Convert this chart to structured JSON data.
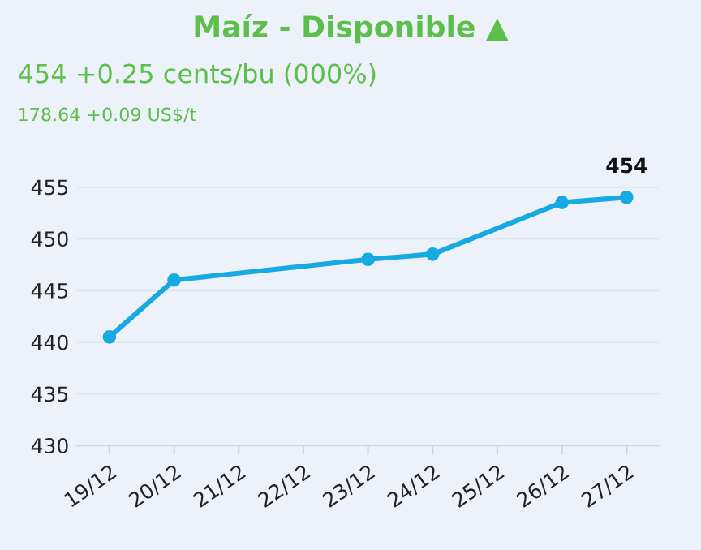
{
  "chart_data": {
    "type": "line",
    "title": "Maíz - Disponible ▲",
    "subtitle": "454 +0.25 cents/bu (000%)",
    "annotations": [
      "178.64 +0.09 US$/t",
      {
        "text": "454",
        "x": "27/12",
        "y": 454
      }
    ],
    "categories": [
      "19/12",
      "20/12",
      "21/12",
      "22/12",
      "23/12",
      "24/12",
      "25/12",
      "26/12",
      "27/12"
    ],
    "series": [
      {
        "color": "#17a9e1",
        "values": [
          440.5,
          446,
          null,
          null,
          448,
          448.5,
          null,
          453.5,
          454
        ]
      }
    ],
    "ylim": [
      430,
      455
    ],
    "yticks": [
      430,
      435,
      440,
      445,
      450,
      455
    ],
    "grid": "y",
    "marker": "circle",
    "line_style": "solid",
    "legend": false
  }
}
